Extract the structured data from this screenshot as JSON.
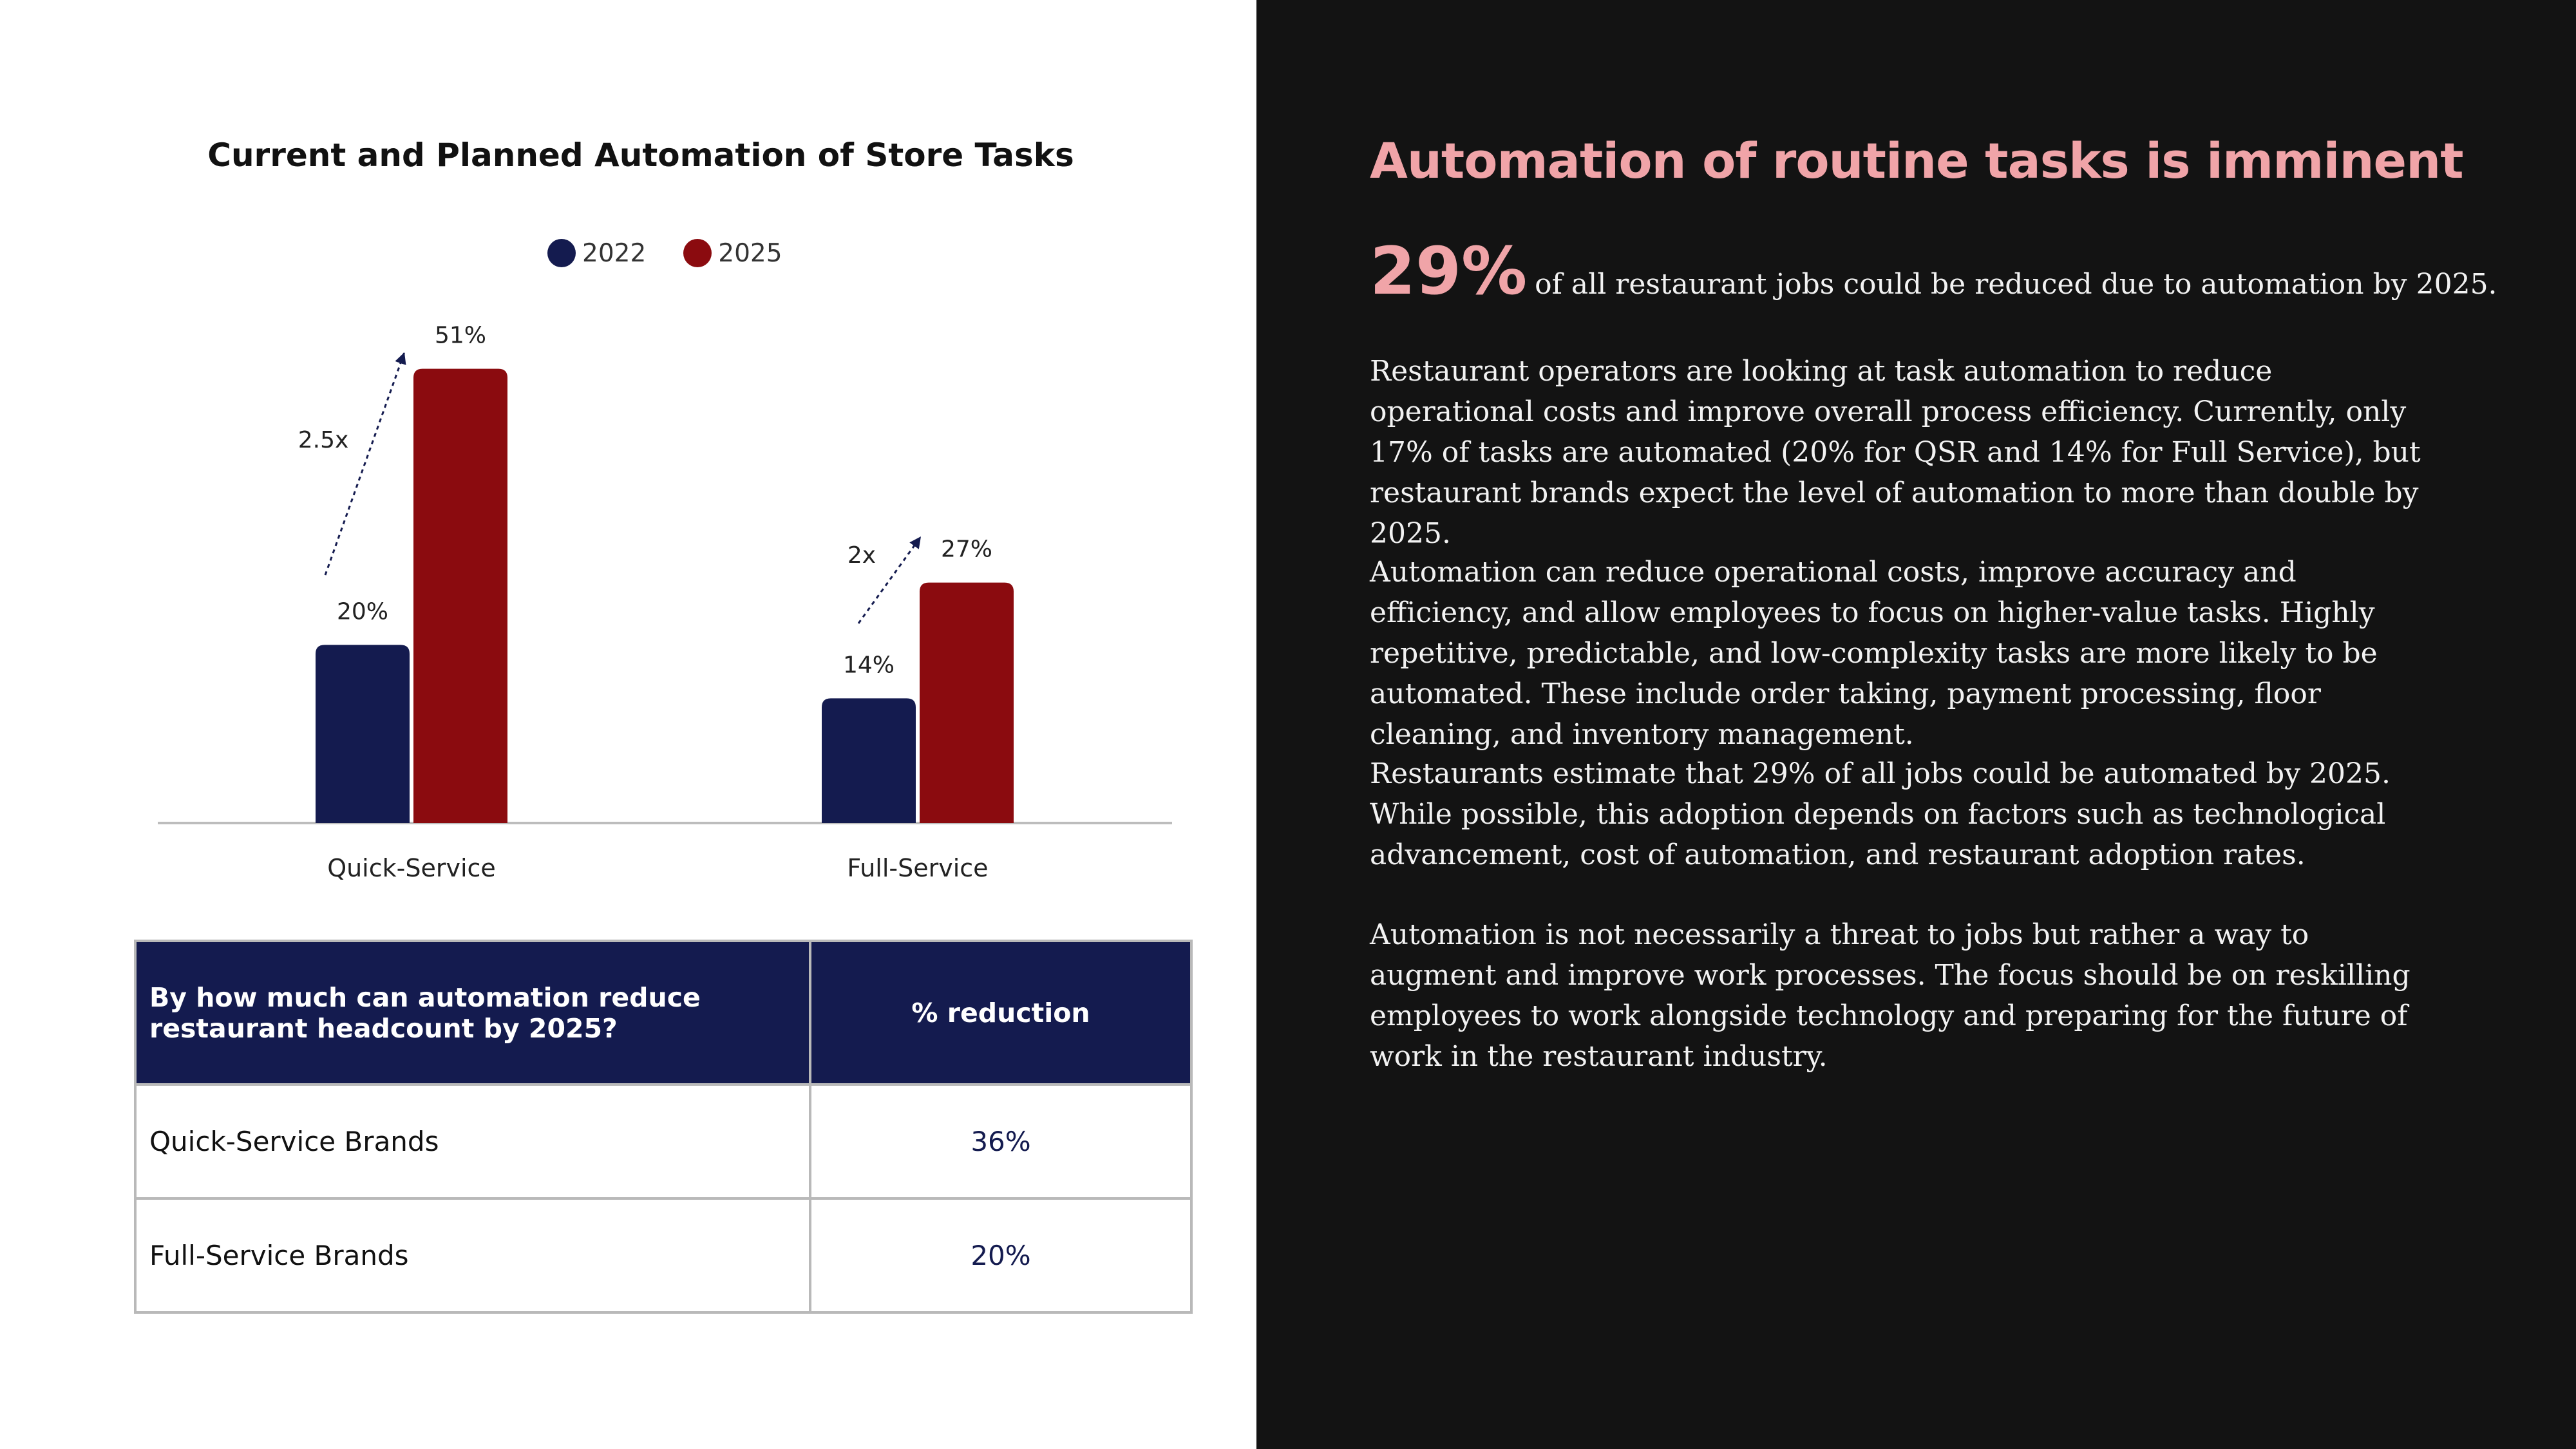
{
  "chart_data": {
    "type": "bar",
    "title": "Current and Planned Automation of Store Tasks",
    "categories": [
      "Quick-Service",
      "Full-Service"
    ],
    "series": [
      {
        "name": "2022",
        "values": [
          20,
          14
        ],
        "color": "#141b4f"
      },
      {
        "name": "2025",
        "values": [
          51,
          27
        ],
        "color": "#8b0b0f"
      }
    ],
    "value_labels": [
      [
        "20%",
        "14%"
      ],
      [
        "51%",
        "27%"
      ]
    ],
    "growth_annotations": [
      "2.5x",
      "2x"
    ],
    "ylim": [
      0,
      55
    ],
    "grid": false,
    "legend": "top"
  },
  "table": {
    "header_question": "By how much can automation reduce restaurant headcount by 2025?",
    "header_value": "%  reduction",
    "rows": [
      {
        "brand": "Quick-Service Brands",
        "value": "36%"
      },
      {
        "brand": "Full-Service Brands",
        "value": "20%"
      }
    ]
  },
  "right": {
    "headline": "Automation of routine tasks is imminent",
    "stat_value": "29%",
    "stat_text": "of all restaurant jobs could be reduced due to automation by 2025.",
    "paragraphs": [
      "Restaurant operators are looking at task automation to reduce operational costs and improve overall process efficiency. Currently, only 17% of tasks are automated (20% for QSR and 14% for Full Service), but restaurant brands expect the level of automation to more than double by 2025.",
      "Automation can reduce operational costs, improve accuracy and efficiency, and allow employees to focus on higher-value tasks. Highly repetitive, predictable, and low-complexity tasks are more likely to be automated. These include order taking, payment processing, floor cleaning, and inventory management.",
      "Restaurants estimate that 29% of all jobs could be automated by 2025. While possible, this adoption depends on factors such as technological advancement, cost of automation, and restaurant adoption rates.",
      "Automation is not necessarily a threat to jobs but rather a way to augment and improve work processes. The focus should be on reskilling employees to work alongside technology and preparing for the future of work in the restaurant industry."
    ]
  }
}
